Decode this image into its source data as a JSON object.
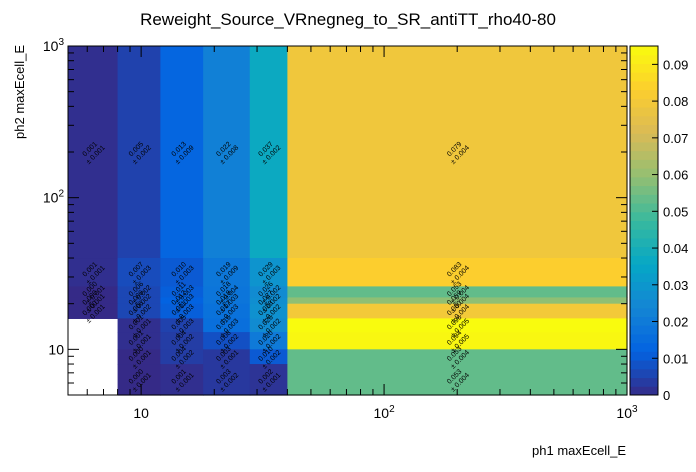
{
  "chart_data": {
    "type": "heatmap",
    "title": "Reweight_Source_VRnegneg_to_SR_antiTT_rho40-80",
    "xlabel": "ph1 maxEcell_E",
    "ylabel": "ph2 maxEcell_E",
    "xscale": "log",
    "yscale": "log",
    "xlim": [
      5,
      1000
    ],
    "ylim": [
      5,
      1000
    ],
    "x_ticks": [
      {
        "value": 10,
        "label": "10"
      },
      {
        "value": 100,
        "label": "10",
        "exp": "2"
      },
      {
        "value": 1000,
        "label": "10",
        "exp": "3"
      }
    ],
    "y_ticks": [
      {
        "value": 10,
        "label": "10"
      },
      {
        "value": 100,
        "label": "10",
        "exp": "2"
      },
      {
        "value": 1000,
        "label": "10",
        "exp": "3"
      }
    ],
    "zlim": [
      0,
      0.095
    ],
    "z_ticks": [
      "0",
      "0.01",
      "0.02",
      "0.03",
      "0.04",
      "0.05",
      "0.06",
      "0.07",
      "0.08",
      "0.09"
    ],
    "x_edges": [
      5,
      8,
      12,
      18,
      28,
      40,
      1000
    ],
    "y_edges": [
      5,
      8,
      10,
      13,
      16,
      20,
      22,
      26,
      40,
      1000
    ],
    "cells": [
      {
        "row": 8,
        "col": 0,
        "value": 0.001,
        "error": 0.001
      },
      {
        "row": 8,
        "col": 1,
        "value": 0.005,
        "error": 0.002
      },
      {
        "row": 8,
        "col": 2,
        "value": 0.013,
        "error": 0.009
      },
      {
        "row": 8,
        "col": 3,
        "value": 0.022,
        "error": 0.008
      },
      {
        "row": 8,
        "col": 4,
        "value": 0.037,
        "error": 0.002
      },
      {
        "row": 8,
        "col": 5,
        "value": 0.079,
        "error": 0.004
      },
      {
        "row": 7,
        "col": 0,
        "value": 0.001,
        "error": 0.001
      },
      {
        "row": 7,
        "col": 1,
        "value": 0.007,
        "error": 0.003
      },
      {
        "row": 7,
        "col": 2,
        "value": 0.01,
        "error": 0.003
      },
      {
        "row": 7,
        "col": 3,
        "value": 0.019,
        "error": 0.009
      },
      {
        "row": 7,
        "col": 4,
        "value": 0.029,
        "error": 0.003
      },
      {
        "row": 7,
        "col": 5,
        "value": 0.083,
        "error": 0.004
      },
      {
        "row": 6,
        "col": 0,
        "value": 0.0,
        "error": 0.001
      },
      {
        "row": 6,
        "col": 1,
        "value": 0.006,
        "error": 0.002
      },
      {
        "row": 6,
        "col": 2,
        "value": 0.011,
        "error": 0.003
      },
      {
        "row": 6,
        "col": 3,
        "value": 0.018,
        "error": 0.004
      },
      {
        "row": 6,
        "col": 4,
        "value": 0.026,
        "error": 0.002
      },
      {
        "row": 6,
        "col": 5,
        "value": 0.053,
        "error": 0.004
      },
      {
        "row": 5,
        "col": 0,
        "value": 0.0,
        "error": 0.001
      },
      {
        "row": 5,
        "col": 1,
        "value": 0.006,
        "error": 0.002
      },
      {
        "row": 5,
        "col": 2,
        "value": 0.012,
        "error": 0.003
      },
      {
        "row": 5,
        "col": 3,
        "value": 0.018,
        "error": 0.003
      },
      {
        "row": 5,
        "col": 4,
        "value": 0.027,
        "error": 0.002
      },
      {
        "row": 5,
        "col": 5,
        "value": 0.059,
        "error": 0.004
      },
      {
        "row": 4,
        "col": 0,
        "value": 0.0,
        "error": 0.001
      },
      {
        "row": 4,
        "col": 1,
        "value": 0.006,
        "error": 0.002
      },
      {
        "row": 4,
        "col": 2,
        "value": 0.011,
        "error": 0.003
      },
      {
        "row": 4,
        "col": 3,
        "value": 0.017,
        "error": 0.003
      },
      {
        "row": 4,
        "col": 4,
        "value": 0.028,
        "error": 0.002
      },
      {
        "row": 4,
        "col": 5,
        "value": 0.08,
        "error": 0.004
      },
      {
        "row": 3,
        "col": 1,
        "value": 0.001,
        "error": 0.001
      },
      {
        "row": 3,
        "col": 2,
        "value": 0.005,
        "error": 0.003
      },
      {
        "row": 3,
        "col": 3,
        "value": 0.016,
        "error": 0.003
      },
      {
        "row": 3,
        "col": 4,
        "value": 0.026,
        "error": 0.002
      },
      {
        "row": 3,
        "col": 5,
        "value": 0.096,
        "error": 0.005
      },
      {
        "row": 2,
        "col": 1,
        "value": 0.001,
        "error": 0.001
      },
      {
        "row": 2,
        "col": 2,
        "value": 0.004,
        "error": 0.002
      },
      {
        "row": 2,
        "col": 3,
        "value": 0.008,
        "error": 0.002
      },
      {
        "row": 2,
        "col": 4,
        "value": 0.02,
        "error": 0.002
      },
      {
        "row": 2,
        "col": 5,
        "value": 0.094,
        "error": 0.005
      },
      {
        "row": 1,
        "col": 1,
        "value": 0.0,
        "error": 0.001
      },
      {
        "row": 1,
        "col": 2,
        "value": 0.004,
        "error": 0.002
      },
      {
        "row": 1,
        "col": 3,
        "value": 0.003,
        "error": 0.001
      },
      {
        "row": 1,
        "col": 4,
        "value": 0.01,
        "error": 0.002
      },
      {
        "row": 1,
        "col": 5,
        "value": 0.053,
        "error": 0.004
      },
      {
        "row": 0,
        "col": 1,
        "value": 0.0,
        "error": 0.001
      },
      {
        "row": 0,
        "col": 2,
        "value": 0.001,
        "error": 0.001
      },
      {
        "row": 0,
        "col": 3,
        "value": 0.003,
        "error": 0.002
      },
      {
        "row": 0,
        "col": 4,
        "value": 0.002,
        "error": 0.001
      },
      {
        "row": 0,
        "col": 5,
        "value": 0.053,
        "error": 0.004
      }
    ],
    "palette": [
      "#352a87",
      "#0363e1",
      "#1485d4",
      "#06a7c6",
      "#38b99e",
      "#92bf73",
      "#d9ba56",
      "#fcce2e",
      "#f9fb0e"
    ],
    "grid": false,
    "legend": "colorbar-right"
  }
}
